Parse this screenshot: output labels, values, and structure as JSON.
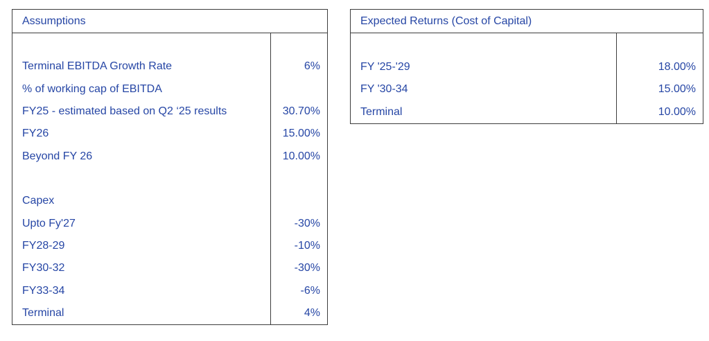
{
  "colors": {
    "text": "#2646A5",
    "border": "#3c3c3c",
    "background": "#ffffff"
  },
  "assumptions": {
    "title": "Assumptions",
    "rows": [
      {
        "label": "",
        "value": ""
      },
      {
        "label": "Terminal EBITDA Growth Rate",
        "value": "6%"
      },
      {
        "label": "% of working cap of EBITDA",
        "value": ""
      },
      {
        "label": "FY25 - estimated based on Q2 ‘25 results",
        "value": "30.70%"
      },
      {
        "label": "FY26",
        "value": "15.00%"
      },
      {
        "label": "Beyond FY 26",
        "value": "10.00%"
      },
      {
        "label": "",
        "value": ""
      },
      {
        "label": "Capex",
        "value": ""
      },
      {
        "label": "Upto Fy'27",
        "value": "-30%"
      },
      {
        "label": "FY28-29",
        "value": "-10%"
      },
      {
        "label": "FY30-32",
        "value": "-30%"
      },
      {
        "label": "FY33-34",
        "value": "-6%"
      },
      {
        "label": "Terminal",
        "value": "4%"
      }
    ]
  },
  "expected_returns": {
    "title": "Expected Returns (Cost of Capital)",
    "rows": [
      {
        "label": "",
        "value": ""
      },
      {
        "label": "FY '25-'29",
        "value": "18.00%"
      },
      {
        "label": "FY '30-34",
        "value": "15.00%"
      },
      {
        "label": "Terminal",
        "value": "10.00%"
      }
    ]
  }
}
